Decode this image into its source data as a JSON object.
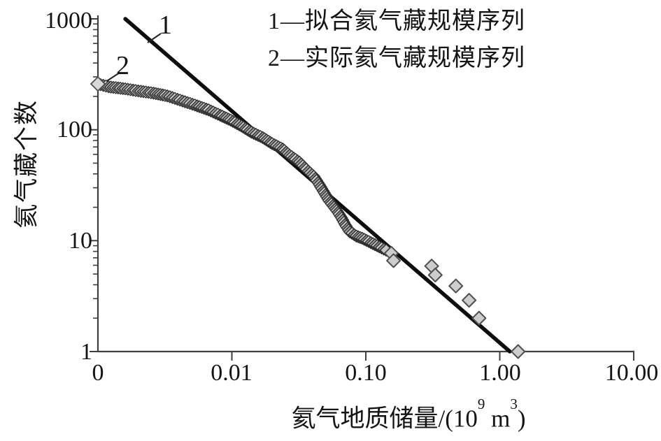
{
  "chart_data": {
    "type": "scatter",
    "x_scale": "log",
    "y_scale": "log",
    "grid": false,
    "x_axis": {
      "label_full": "氦气地质储量/(10⁹ m³)",
      "label_parts": {
        "prefix": "氦气地质储量/(10",
        "sup1": "9",
        "mid": " m",
        "sup2": "3",
        "suffix": ")"
      },
      "range": [
        0.001,
        10
      ],
      "ticks": [
        {
          "label": "0",
          "log": -3
        },
        {
          "label": "0.01",
          "log": -2
        },
        {
          "label": "0.10",
          "log": -1
        },
        {
          "label": "1.00",
          "log": 0
        },
        {
          "label": "10.00",
          "log": 1
        }
      ]
    },
    "y_axis": {
      "label": "氦气藏个数",
      "range": [
        1,
        1000
      ],
      "minor_ticks": true,
      "ticks": [
        {
          "label": "1000",
          "value": 1000
        },
        {
          "label": "100",
          "value": 100
        },
        {
          "label": "10",
          "value": 10
        },
        {
          "label": "1",
          "value": 1
        }
      ]
    },
    "legend": [
      {
        "text": "1—拟合氦气藏规模序列"
      },
      {
        "text": "2—实际氦气藏规模序列"
      }
    ],
    "annotations": [
      {
        "text": "1",
        "target": "fitted-line"
      },
      {
        "text": "2",
        "target": "actual-series-first-point"
      }
    ],
    "colors": {
      "line": "#0d0d0d",
      "marker_fill": "#cdcdcd",
      "marker_stroke": "#4f4f4f",
      "band_fills": [
        "#9b9b9b",
        "#c6c6c6",
        "#858585",
        "#d4d4d4",
        "#8e8e8e",
        "#b6b6b6"
      ],
      "band_stroke": "#2e2e2e",
      "axis": "#3f3f3f",
      "text": "#141414"
    },
    "series": [
      {
        "id": 1,
        "name": "拟合氦气藏规模序列",
        "type": "line",
        "points": [
          [
            0.0016,
            1000
          ],
          [
            1.19,
            1
          ]
        ]
      },
      {
        "id": 2,
        "name": "实际氦气藏规模序列",
        "type": "scatter",
        "marker": "diamond",
        "band_points": [
          [
            0.001,
            259
          ],
          [
            0.0012,
            244
          ],
          [
            0.0016,
            234
          ],
          [
            0.002,
            224
          ],
          [
            0.0026,
            214
          ],
          [
            0.0033,
            202
          ],
          [
            0.0041,
            185
          ],
          [
            0.0053,
            167
          ],
          [
            0.0067,
            151
          ],
          [
            0.0082,
            135
          ],
          [
            0.0098,
            122
          ],
          [
            0.0118,
            108
          ],
          [
            0.014,
            95
          ],
          [
            0.017,
            85
          ],
          [
            0.02,
            75
          ],
          [
            0.024,
            67
          ],
          [
            0.027,
            59
          ],
          [
            0.032,
            51
          ],
          [
            0.036,
            44
          ],
          [
            0.041,
            38
          ],
          [
            0.045,
            32
          ],
          [
            0.049,
            27
          ],
          [
            0.053,
            23
          ],
          [
            0.058,
            20
          ],
          [
            0.062,
            18
          ],
          [
            0.066,
            16
          ],
          [
            0.07,
            14
          ],
          [
            0.076,
            12
          ],
          [
            0.085,
            11
          ],
          [
            0.094,
            10.5
          ],
          [
            0.109,
            9.6
          ],
          [
            0.126,
            8.8
          ],
          [
            0.142,
            8.2
          ]
        ],
        "tail_points": [
          [
            0.155,
            7.7
          ],
          [
            0.161,
            6.6
          ],
          [
            0.31,
            5.9
          ],
          [
            0.33,
            4.9
          ],
          [
            0.47,
            3.9
          ],
          [
            0.59,
            2.9
          ],
          [
            0.7,
            2.0
          ],
          [
            1.37,
            1.0
          ]
        ]
      }
    ]
  }
}
